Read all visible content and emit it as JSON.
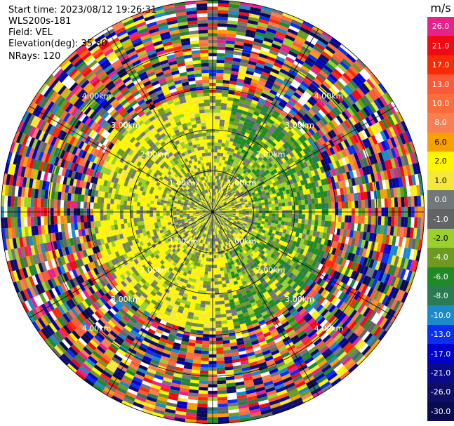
{
  "header": {
    "start_time": "Start time: 2023/08/12 19:26:31",
    "instrument": "WLS200s-181",
    "field": "Field: VEL",
    "elevation": "Elevation(deg): 35.30",
    "nrays": "NRays: 120"
  },
  "colorbar": {
    "unit": "m/s",
    "levels": [
      {
        "label": "26.0",
        "color": "#e8228a"
      },
      {
        "label": "21.0",
        "color": "#f00a14"
      },
      {
        "label": "17.0",
        "color": "#fb2a06"
      },
      {
        "label": "13.0",
        "color": "#fb5a38"
      },
      {
        "label": "10.0",
        "color": "#f96c3c"
      },
      {
        "label": "8.0",
        "color": "#f77f52"
      },
      {
        "label": "6.0",
        "color": "#f6a100"
      },
      {
        "label": "2.0",
        "color": "#fff600"
      },
      {
        "label": "1.0",
        "color": "#f6e83a"
      },
      {
        "label": "0.0",
        "color": "#72787a"
      },
      {
        "label": "-1.0",
        "color": "#636466"
      },
      {
        "label": "-2.0",
        "color": "#9bcf2a"
      },
      {
        "label": "-4.0",
        "color": "#6f9a22"
      },
      {
        "label": "-6.0",
        "color": "#1f8a26"
      },
      {
        "label": "-8.0",
        "color": "#2a7a52"
      },
      {
        "label": "-10.0",
        "color": "#1a8acb"
      },
      {
        "label": "-13.0",
        "color": "#0a2ef2"
      },
      {
        "label": "-17.0",
        "color": "#0000cc"
      },
      {
        "label": "-21.0",
        "color": "#0a0a8a"
      },
      {
        "label": "-26.0",
        "color": "#0e0e66"
      },
      {
        "label": "-30.0",
        "color": "#0a0a50"
      }
    ]
  },
  "chart_data": {
    "type": "heatmap",
    "projection": "polar PPI scan",
    "field": "VEL",
    "units": "m/s",
    "elevation_deg": 35.3,
    "n_rays": 120,
    "ring_labels": [
      "1.00km",
      "2.00km",
      "3.00km",
      "4.00km"
    ],
    "grid": true,
    "spokes_deg": [
      0,
      30,
      60,
      90,
      120,
      150,
      180,
      210,
      240,
      270,
      300,
      330
    ],
    "range_structure": [
      {
        "range_km": [
          0.0,
          1.0
        ],
        "dominant_values": [
          "0.0",
          "-2.0",
          "2.0"
        ]
      },
      {
        "range_km": [
          1.0,
          2.0
        ],
        "dominant_values": [
          "2.0",
          "-2.0",
          "0.0",
          "-6.0"
        ]
      },
      {
        "range_km": [
          2.0,
          2.8
        ],
        "dominant_values": [
          "2.0",
          "-2.0",
          "-6.0"
        ]
      },
      {
        "range_km": [
          2.8,
          5.0
        ],
        "dominant_values": [
          "mixed / noise"
        ]
      }
    ]
  }
}
